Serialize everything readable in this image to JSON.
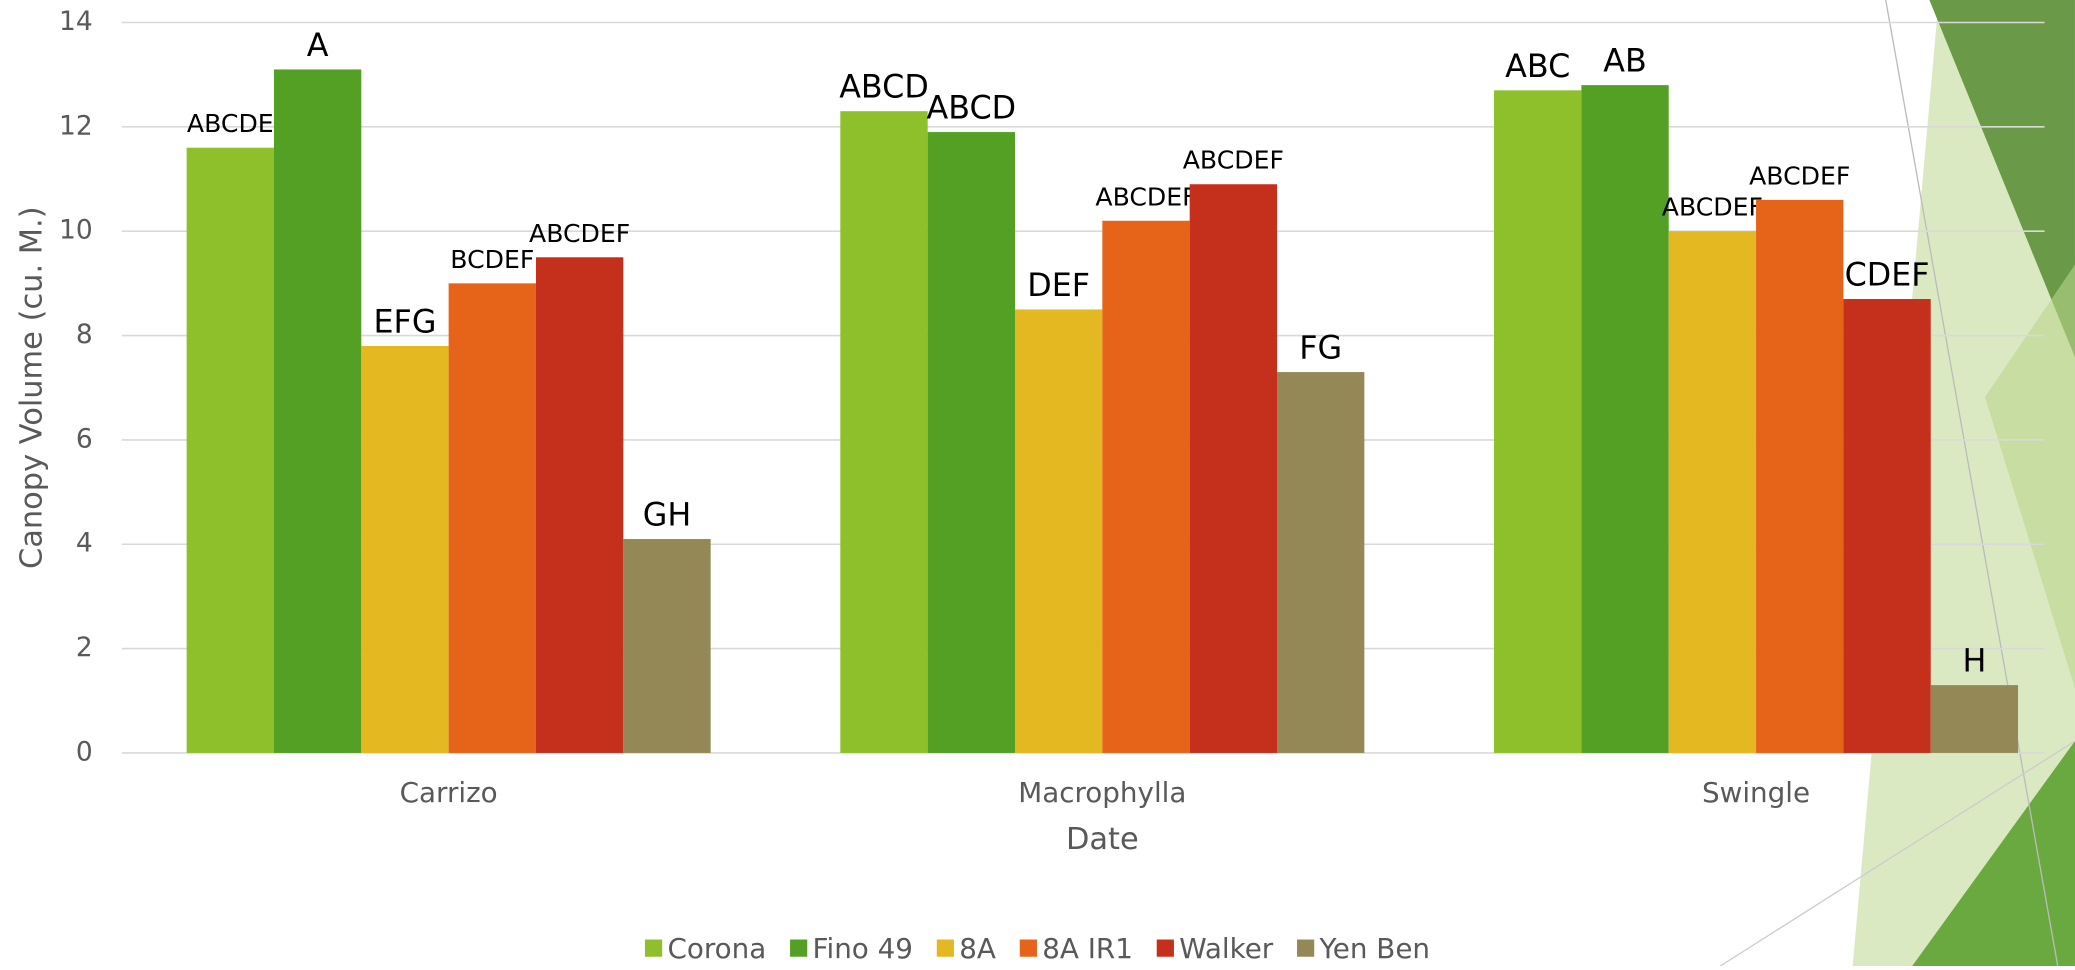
{
  "chart_data": {
    "type": "bar",
    "y_label": "Canopy Volume (cu. M.)",
    "x_label": "Date",
    "categories": [
      "Carrizo",
      "Macrophylla",
      "Swingle"
    ],
    "series": [
      {
        "name": "Corona",
        "color": "#8dc02a",
        "values": [
          11.6,
          12.3,
          12.7
        ],
        "letters": [
          "ABCDE",
          "ABCD",
          "ABC"
        ]
      },
      {
        "name": "Fino 49",
        "color": "#54a024",
        "values": [
          13.1,
          11.9,
          12.8
        ],
        "letters": [
          "A",
          "ABCD",
          "AB"
        ]
      },
      {
        "name": "8A",
        "color": "#e4b820",
        "values": [
          7.8,
          8.5,
          10.0
        ],
        "letters": [
          "EFG",
          "DEF",
          "ABCDEF"
        ]
      },
      {
        "name": "8A IR1",
        "color": "#e6641a",
        "values": [
          9.0,
          10.2,
          10.6
        ],
        "letters": [
          "BCDEF",
          "ABCDEF",
          "ABCDEF"
        ]
      },
      {
        "name": "Walker",
        "color": "#c4301c",
        "values": [
          9.5,
          10.9,
          8.7
        ],
        "letters": [
          "ABCDEF",
          "ABCDEF",
          "CDEF"
        ]
      },
      {
        "name": "Yen Ben",
        "color": "#938856",
        "values": [
          4.1,
          7.3,
          1.3
        ],
        "letters": [
          "GH",
          "FG",
          "H"
        ]
      }
    ],
    "ylim": [
      0,
      14
    ],
    "yticks": [
      0,
      2,
      4,
      6,
      8,
      10,
      12,
      14
    ],
    "grid": true,
    "legend": "bottom"
  }
}
